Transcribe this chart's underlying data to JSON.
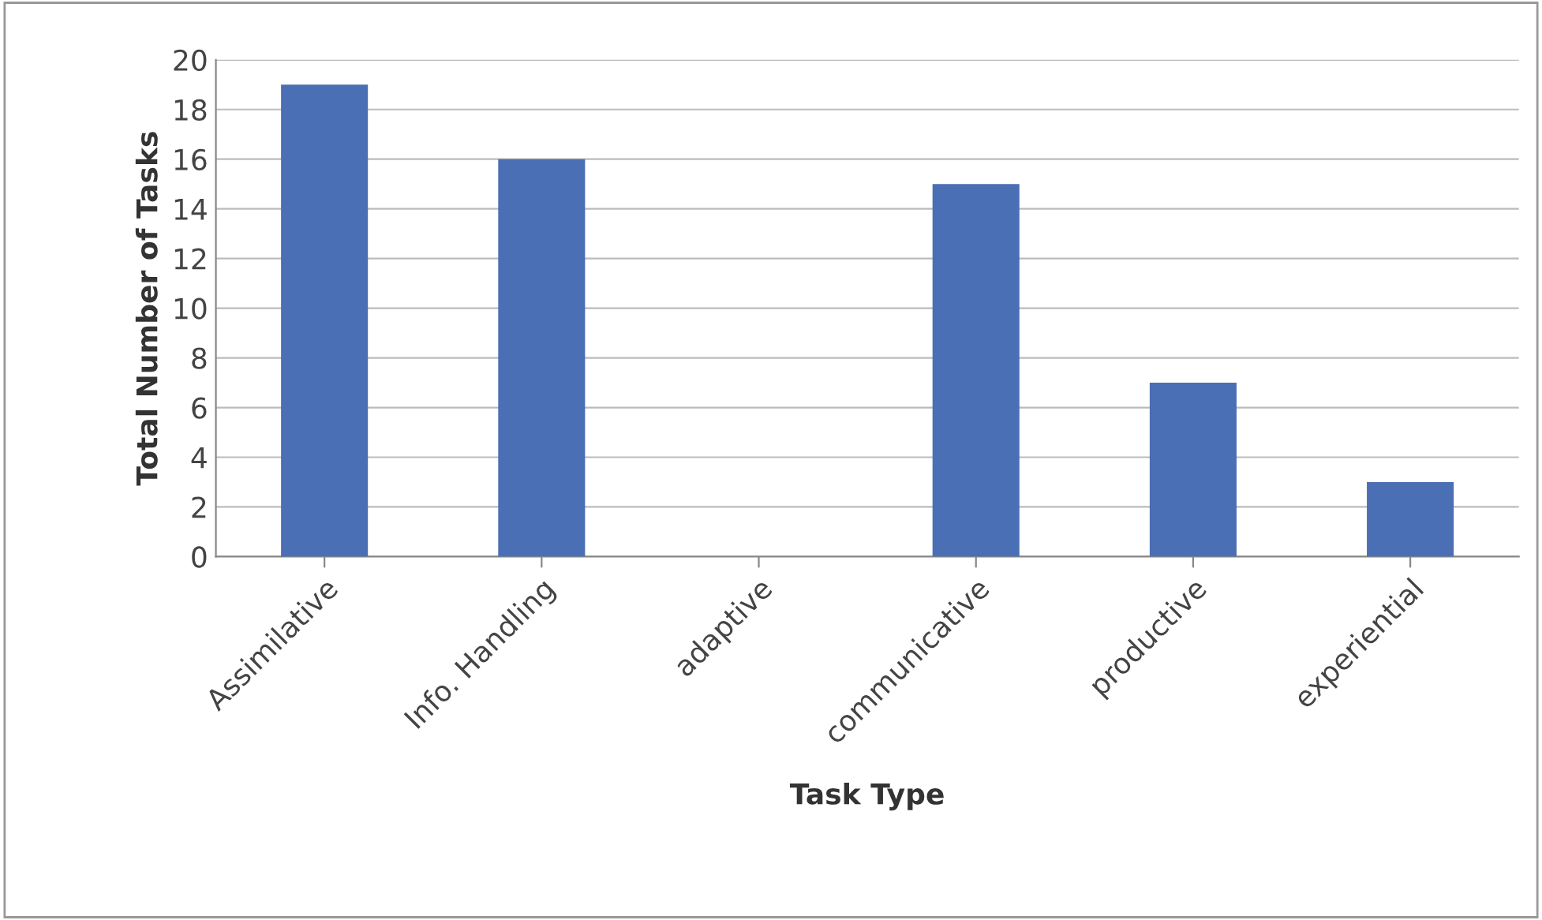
{
  "chart_data": {
    "type": "bar",
    "xlabel": "Task Type",
    "ylabel": "Total Number of Tasks",
    "categories": [
      "Assimilative",
      "Info. Handling",
      "adaptive",
      "communicative",
      "productive",
      "experiential"
    ],
    "values": [
      19,
      16,
      0,
      15,
      7,
      3
    ],
    "color": "#4a6fb4",
    "ylim": [
      0,
      20
    ],
    "yticks": [
      0,
      2,
      4,
      6,
      8,
      10,
      12,
      14,
      16,
      18,
      20
    ],
    "grid": "y"
  }
}
